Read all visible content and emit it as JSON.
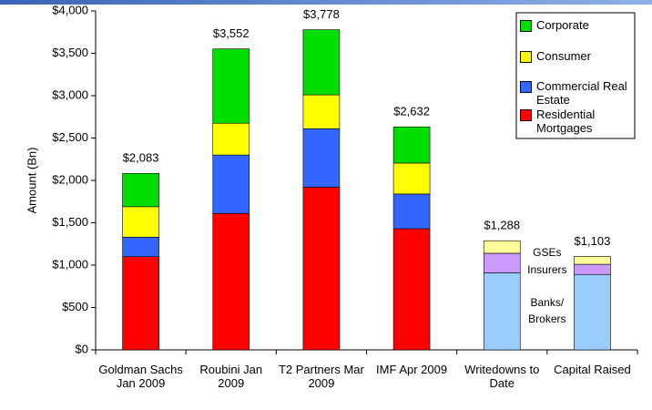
{
  "chart_data": {
    "type": "stacked-bar",
    "y_label": "Amount (Bn)",
    "categories": [
      "Goldman Sachs Jan 2009",
      "Roubini Jan 2009",
      "T2 Partners Mar 2009",
      "IMF Apr 2009",
      "Writedowns to Date",
      "Capital Raised"
    ],
    "series": [
      {
        "name": "Residential Mortgages",
        "color": "#ff0000",
        "values": [
          1100,
          1610,
          1920,
          1430,
          null,
          null
        ]
      },
      {
        "name": "Commercial Real Estate",
        "color": "#3366ff",
        "values": [
          230,
          690,
          690,
          410,
          null,
          null
        ]
      },
      {
        "name": "Consumer",
        "color": "#ffff00",
        "values": [
          360,
          375,
          400,
          365,
          null,
          null
        ]
      },
      {
        "name": "Corporate",
        "color": "#00dd00",
        "values": [
          393,
          877,
          768,
          427,
          null,
          null
        ]
      },
      {
        "name": "Banks/ Brokers",
        "color": "#99ccff",
        "values": [
          null,
          null,
          null,
          null,
          910,
          890
        ]
      },
      {
        "name": "Insurers",
        "color": "#cc99ff",
        "values": [
          null,
          null,
          null,
          null,
          230,
          120
        ]
      },
      {
        "name": "GSEs",
        "color": "#ffff99",
        "values": [
          null,
          null,
          null,
          null,
          148,
          93
        ]
      }
    ],
    "legend_series": [
      3,
      2,
      1,
      0
    ],
    "totals": [
      2083,
      3552,
      3778,
      2632,
      1288,
      1103
    ],
    "total_labels": [
      "$2,083",
      "$3,552",
      "$3,778",
      "$2,632",
      "$1,288",
      "$1,103"
    ],
    "ylim": [
      0,
      4000
    ],
    "yticks": [
      {
        "value": 0,
        "label": "$0"
      },
      {
        "value": 500,
        "label": "$500"
      },
      {
        "value": 1000,
        "label": "$1,000"
      },
      {
        "value": 1500,
        "label": "$1,500"
      },
      {
        "value": 2000,
        "label": "$2,000"
      },
      {
        "value": 2500,
        "label": "$2,500"
      },
      {
        "value": 3000,
        "label": "$3,000"
      },
      {
        "value": 3500,
        "label": "$3,500"
      },
      {
        "value": 4000,
        "label": "$4,000"
      }
    ]
  }
}
